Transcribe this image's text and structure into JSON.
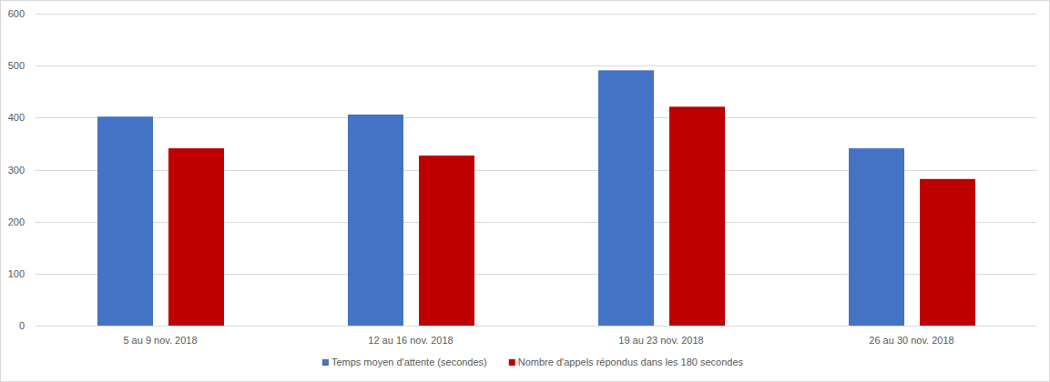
{
  "chart_data": {
    "type": "bar",
    "categories": [
      "5 au 9 nov. 2018",
      "12 au 16 nov. 2018",
      "19 au 23 nov. 2018",
      "26 au 30 nov. 2018"
    ],
    "series": [
      {
        "name": "Temps moyen d'attente (secondes)",
        "color": "#4472c4",
        "values": [
          402,
          406,
          491,
          341
        ]
      },
      {
        "name": "Nombre d'appels répondus dans les 180 secondes",
        "color": "#c00000",
        "values": [
          341,
          327,
          421,
          282
        ]
      }
    ],
    "ylim": [
      0,
      600
    ],
    "yticks": [
      0,
      100,
      200,
      300,
      400,
      500,
      600
    ],
    "grid": true,
    "legend": "bottom"
  }
}
